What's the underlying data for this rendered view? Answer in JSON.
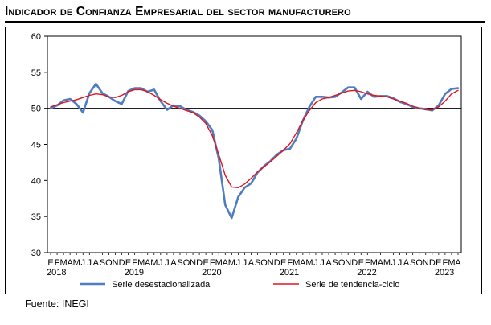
{
  "title": "Indicador de Confianza Empresarial del sector manufacturero",
  "source": "Fuente: INEGI",
  "chart_data": {
    "type": "line",
    "title": "Indicador de Confianza Empresarial del sector manufacturero",
    "xlabel": "",
    "ylabel": "",
    "ylim": [
      30,
      60
    ],
    "yticks": [
      30,
      35,
      40,
      45,
      50,
      55,
      60
    ],
    "reference_line": 50,
    "grid": false,
    "legend_position": "bottom",
    "x": [
      "2018-01",
      "2018-02",
      "2018-03",
      "2018-04",
      "2018-05",
      "2018-06",
      "2018-07",
      "2018-08",
      "2018-09",
      "2018-10",
      "2018-11",
      "2018-12",
      "2019-01",
      "2019-02",
      "2019-03",
      "2019-04",
      "2019-05",
      "2019-06",
      "2019-07",
      "2019-08",
      "2019-09",
      "2019-10",
      "2019-11",
      "2019-12",
      "2020-01",
      "2020-02",
      "2020-03",
      "2020-04",
      "2020-05",
      "2020-06",
      "2020-07",
      "2020-08",
      "2020-09",
      "2020-10",
      "2020-11",
      "2020-12",
      "2021-01",
      "2021-02",
      "2021-03",
      "2021-04",
      "2021-05",
      "2021-06",
      "2021-07",
      "2021-08",
      "2021-09",
      "2021-10",
      "2021-11",
      "2021-12",
      "2022-01",
      "2022-02",
      "2022-03",
      "2022-04",
      "2022-05",
      "2022-06",
      "2022-07",
      "2022-08",
      "2022-09",
      "2022-10",
      "2022-11",
      "2022-12",
      "2023-01",
      "2023-02",
      "2023-03",
      "2023-04"
    ],
    "tick_months": [
      "E",
      "F",
      "M",
      "A",
      "M",
      "J",
      "J",
      "A",
      "S",
      "O",
      "N",
      "D",
      "E",
      "F",
      "M",
      "A",
      "M",
      "J",
      "J",
      "A",
      "S",
      "O",
      "N",
      "D",
      "E",
      "F",
      "M",
      "A",
      "M",
      "J",
      "J",
      "A",
      "S",
      "O",
      "N",
      "D",
      "E",
      "F",
      "M",
      "A",
      "M",
      "J",
      "J",
      "A",
      "S",
      "O",
      "N",
      "D",
      "E",
      "F",
      "M",
      "A",
      "M",
      "J",
      "J",
      "A",
      "S",
      "O",
      "N",
      "D",
      "E",
      "F",
      "M",
      "A"
    ],
    "year_labels": [
      {
        "label": "2018",
        "month_index": 0
      },
      {
        "label": "2019",
        "month_index": 12
      },
      {
        "label": "2020",
        "month_index": 24
      },
      {
        "label": "2021",
        "month_index": 36
      },
      {
        "label": "2022",
        "month_index": 48
      },
      {
        "label": "2023",
        "month_index": 60
      }
    ],
    "series": [
      {
        "name": "Serie desestacionalizada",
        "color": "#4f7dbf",
        "values": [
          50.0,
          50.4,
          51.1,
          51.3,
          50.6,
          49.4,
          52.1,
          53.4,
          52.1,
          51.6,
          51.0,
          50.6,
          52.4,
          52.8,
          52.8,
          52.3,
          52.6,
          51.0,
          49.8,
          50.4,
          50.3,
          49.8,
          49.5,
          49.0,
          48.2,
          47.0,
          43.0,
          36.6,
          34.8,
          37.7,
          39.0,
          39.6,
          41.1,
          42.0,
          42.7,
          43.6,
          44.2,
          44.4,
          45.8,
          48.3,
          50.2,
          51.6,
          51.6,
          51.5,
          51.6,
          52.2,
          52.9,
          52.9,
          51.3,
          52.3,
          51.6,
          51.7,
          51.7,
          51.4,
          50.9,
          50.6,
          50.2,
          50.0,
          49.9,
          49.7,
          50.4,
          52.0,
          52.7,
          52.8
        ]
      },
      {
        "name": "Serie de tendencia-ciclo",
        "color": "#e1131d",
        "values": [
          50.2,
          50.5,
          50.8,
          51.0,
          51.2,
          51.5,
          51.8,
          52.0,
          51.9,
          51.6,
          51.5,
          51.8,
          52.3,
          52.6,
          52.6,
          52.3,
          51.8,
          51.2,
          50.7,
          50.3,
          50.0,
          49.7,
          49.4,
          48.8,
          47.9,
          46.2,
          43.6,
          40.7,
          39.1,
          39.0,
          39.5,
          40.3,
          41.2,
          41.9,
          42.6,
          43.4,
          44.2,
          45.1,
          46.6,
          48.3,
          49.7,
          50.8,
          51.3,
          51.5,
          51.8,
          52.1,
          52.4,
          52.5,
          52.3,
          52.0,
          51.8,
          51.7,
          51.6,
          51.3,
          51.0,
          50.7,
          50.3,
          50.0,
          49.8,
          49.8,
          50.2,
          51.0,
          52.0,
          52.5
        ]
      }
    ]
  }
}
